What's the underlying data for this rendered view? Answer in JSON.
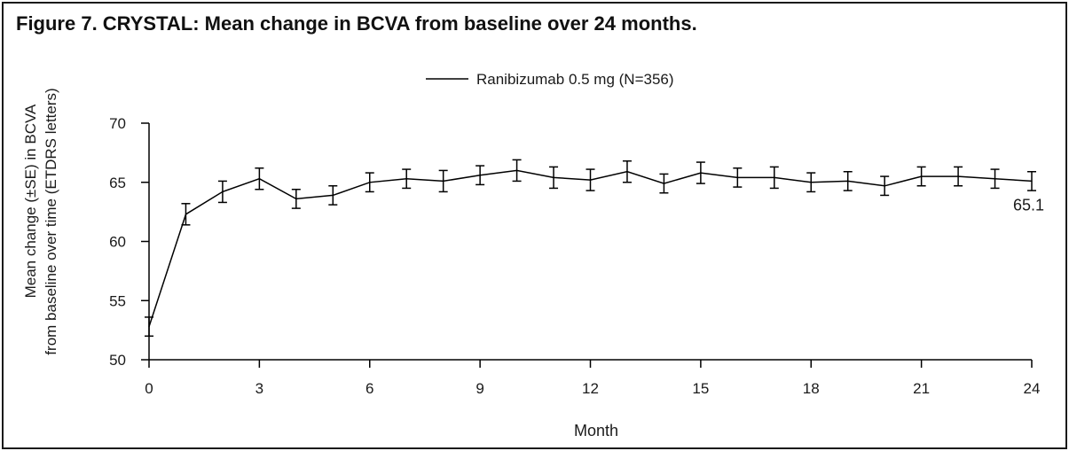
{
  "title": "Figure 7. CRYSTAL: Mean change in BCVA from baseline over 24 months.",
  "chart_data": {
    "type": "line",
    "ylabel_line1": "Mean change (±SE) in BCVA",
    "ylabel_line2": "from baseline over time (ETDRS letters)",
    "xlabel": "Month",
    "ylim": [
      50,
      70
    ],
    "xlim": [
      0,
      24
    ],
    "y_ticks": [
      50,
      55,
      60,
      65,
      70
    ],
    "x_ticks": [
      0,
      3,
      6,
      9,
      12,
      15,
      18,
      21,
      24
    ],
    "legend_position": "top-center",
    "series": [
      {
        "name": "Ranibizumab 0.5 mg (N=356)",
        "color": "#000000",
        "x": [
          0,
          1,
          2,
          3,
          4,
          5,
          6,
          7,
          8,
          9,
          10,
          11,
          12,
          13,
          14,
          15,
          16,
          17,
          18,
          19,
          20,
          21,
          22,
          23,
          24
        ],
        "y": [
          52.8,
          62.3,
          64.2,
          65.3,
          63.6,
          63.9,
          65.0,
          65.3,
          65.1,
          65.6,
          66.0,
          65.4,
          65.2,
          65.9,
          64.9,
          65.8,
          65.4,
          65.4,
          65.0,
          65.1,
          64.7,
          65.5,
          65.5,
          65.3,
          65.1
        ],
        "se": [
          0.8,
          0.9,
          0.9,
          0.9,
          0.8,
          0.8,
          0.8,
          0.8,
          0.9,
          0.8,
          0.9,
          0.9,
          0.9,
          0.9,
          0.8,
          0.9,
          0.8,
          0.9,
          0.8,
          0.8,
          0.8,
          0.8,
          0.8,
          0.8,
          0.8
        ]
      }
    ],
    "annotation": {
      "text": "65.1",
      "x": 24,
      "y": 65.1
    }
  }
}
